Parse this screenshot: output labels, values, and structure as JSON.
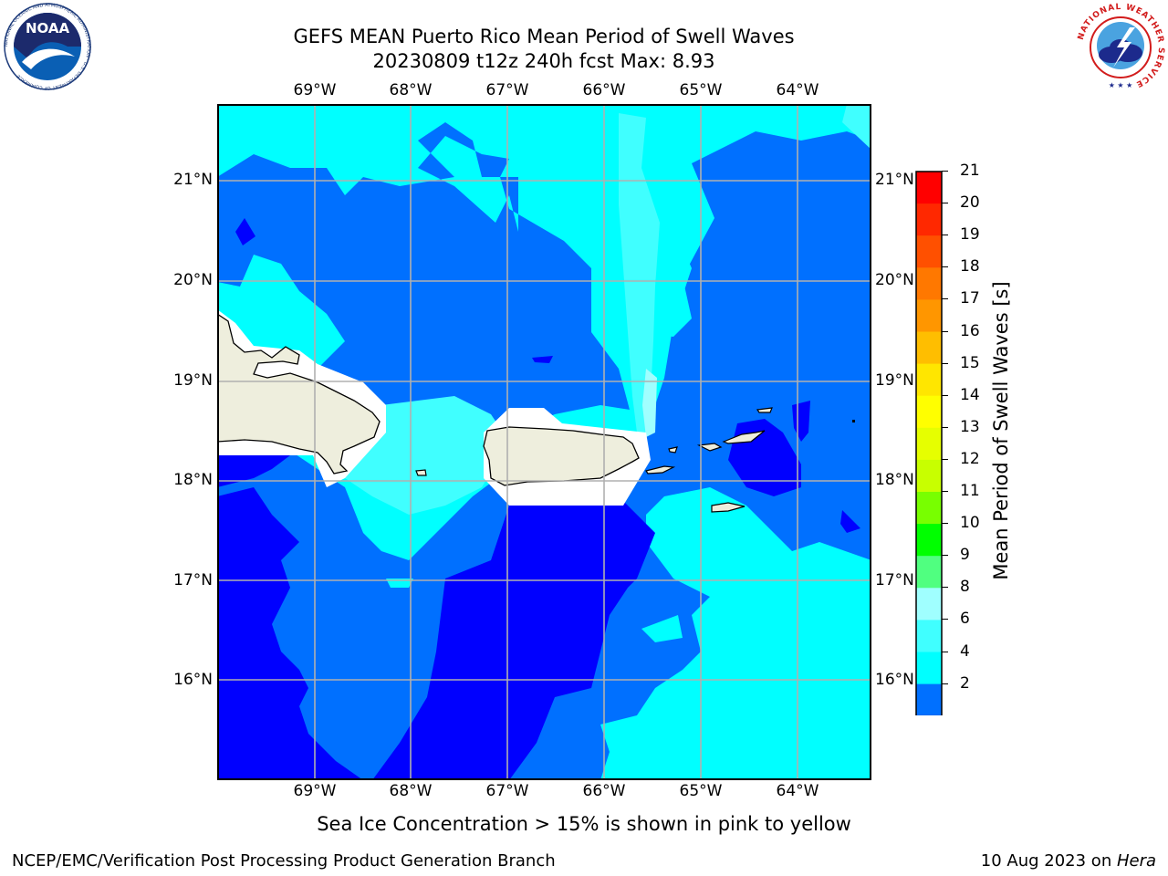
{
  "title": {
    "line1": "GEFS MEAN Puerto Rico Mean Period of Swell Waves",
    "line2": "20230809 t12z 240h fcst   Max: 8.93"
  },
  "logos": {
    "noaa_text": "NOAA",
    "noaa_ring": "NATIONAL OCEANIC AND ATMOSPHERIC ADMINISTRATION · U.S. DEPARTMENT OF COMMERCE",
    "nws_ring": "NATIONAL WEATHER SERVICE"
  },
  "map": {
    "lon_labels": [
      "69°W",
      "68°W",
      "67°W",
      "66°W",
      "65°W",
      "64°W"
    ],
    "lat_labels": [
      "21°N",
      "20°N",
      "19°N",
      "18°N",
      "17°N",
      "16°N"
    ],
    "colors": {
      "ocean_deep": "#0000ff",
      "ocean_mid": "#0070ff",
      "ocean_light": "#00ffff",
      "ocean_pale": "#40ffff",
      "ocean_pale2": "#a0ffff",
      "land": "#eeeedd",
      "gridline": "#b0b0b0"
    }
  },
  "colorbar": {
    "label": "Mean Period of Swell Waves [s]",
    "ticks": [
      "21",
      "20",
      "19",
      "18",
      "17",
      "16",
      "15",
      "14",
      "13",
      "12",
      "11",
      "10",
      "9",
      "8",
      "6",
      "4",
      "2"
    ],
    "colors": [
      "#ff0000",
      "#ff2800",
      "#ff5000",
      "#ff7800",
      "#ff9600",
      "#ffbe00",
      "#ffe600",
      "#ffff00",
      "#e6ff00",
      "#c8ff00",
      "#78ff00",
      "#00ff00",
      "#50ff80",
      "#a0ffff",
      "#40ffff",
      "#00ffff",
      "#0070ff"
    ],
    "under_color": "#0000ff"
  },
  "caption": "Sea Ice Concentration > 15% is shown in pink to yellow",
  "footer": {
    "left": "NCEP/EMC/Verification Post Processing Product Generation Branch",
    "right_prefix": "10 Aug 2023 on ",
    "right_host": "Hera"
  }
}
